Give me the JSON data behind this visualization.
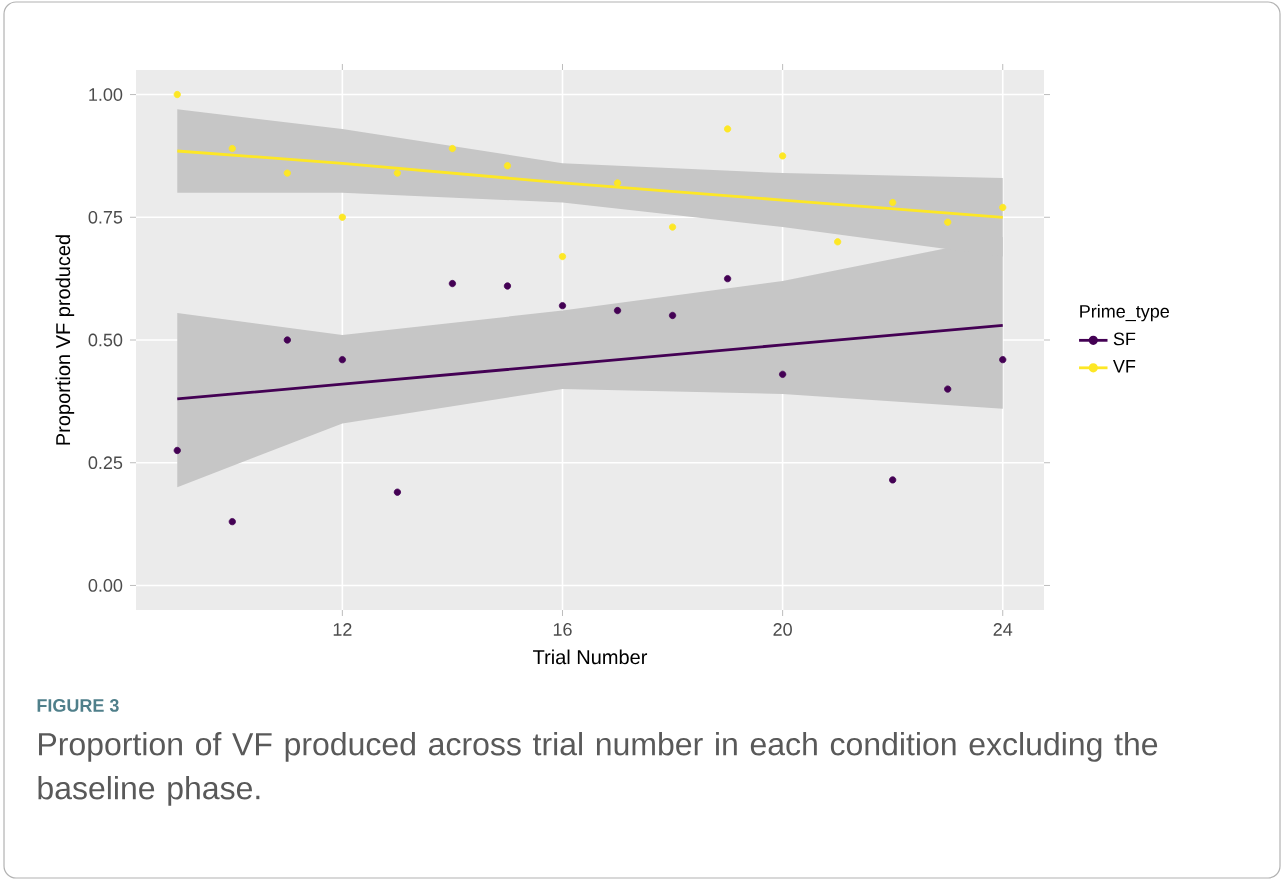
{
  "chart_data": {
    "type": "scatter",
    "xlabel": "Trial Number",
    "ylabel": "Proportion VF produced",
    "legend_title": "Prime_type",
    "annotations": [
      "FIGURE 3",
      "Proportion of VF produced across trial number in each condition excluding the baseline phase."
    ],
    "xlim": [
      8.25,
      24.75
    ],
    "ylim": [
      -0.05,
      1.05
    ],
    "xticks": [
      12,
      16,
      20,
      24
    ],
    "yticks": [
      {
        "value": 0,
        "label": "0.00"
      },
      {
        "value": 0.25,
        "label": "0.25"
      },
      {
        "value": 0.5,
        "label": "0.50"
      },
      {
        "value": 0.75,
        "label": "0.75"
      },
      {
        "value": 1,
        "label": "1.00"
      }
    ],
    "grid": true,
    "legend": "right",
    "series": [
      {
        "type": "line",
        "name": "SF",
        "color": "#440154",
        "marker": "none",
        "x": [
          9,
          12,
          16,
          20,
          24
        ],
        "values": [
          0.38,
          0.41,
          0.45,
          0.49,
          0.53
        ],
        "lower": [
          0.2,
          0.33,
          0.4,
          0.39,
          0.36
        ],
        "upper": [
          0.555,
          0.51,
          0.56,
          0.62,
          0.71
        ]
      },
      {
        "type": "line",
        "name": "VF",
        "color": "#fde725",
        "marker": "none",
        "x": [
          9,
          12,
          16,
          20,
          24
        ],
        "values": [
          0.885,
          0.86,
          0.82,
          0.785,
          0.75
        ],
        "lower": [
          0.8,
          0.8,
          0.78,
          0.73,
          0.67
        ],
        "upper": [
          0.97,
          0.93,
          0.86,
          0.84,
          0.83
        ]
      },
      {
        "type": "scatter",
        "color": "#440154",
        "marker": "circle",
        "x": [
          9,
          10,
          11,
          12,
          13,
          14,
          15,
          16,
          17,
          18,
          19,
          20,
          22,
          23,
          24
        ],
        "values": [
          0.275,
          0.13,
          0.5,
          0.46,
          0.19,
          0.615,
          0.61,
          0.57,
          0.56,
          0.55,
          0.625,
          0.43,
          0.215,
          0.4,
          0.46
        ]
      },
      {
        "type": "scatter",
        "color": "#fde725",
        "marker": "circle",
        "x": [
          9,
          10,
          11,
          12,
          13,
          14,
          15,
          16,
          17,
          18,
          19,
          20,
          21,
          22,
          23,
          24
        ],
        "values": [
          1.0,
          0.89,
          0.84,
          0.75,
          0.84,
          0.89,
          0.855,
          0.67,
          0.82,
          0.73,
          0.93,
          0.875,
          0.7,
          0.78,
          0.74,
          0.77
        ]
      }
    ]
  }
}
